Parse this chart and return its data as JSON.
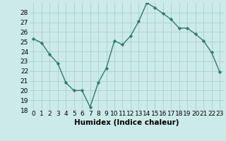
{
  "x": [
    0,
    1,
    2,
    3,
    4,
    5,
    6,
    7,
    8,
    9,
    10,
    11,
    12,
    13,
    14,
    15,
    16,
    17,
    18,
    19,
    20,
    21,
    22,
    23
  ],
  "y": [
    25.3,
    24.9,
    23.7,
    22.8,
    20.8,
    20.0,
    20.0,
    18.3,
    20.8,
    22.3,
    25.1,
    24.7,
    25.6,
    27.1,
    29.0,
    28.5,
    27.9,
    27.3,
    26.4,
    26.4,
    25.8,
    25.1,
    23.9,
    21.9
  ],
  "line_color": "#2d7d6e",
  "marker": "D",
  "marker_size": 2.2,
  "bg_color": "#cceaea",
  "grid_color": "#aacfcf",
  "xlabel": "Humidex (Indice chaleur)",
  "ylim": [
    18,
    29
  ],
  "xlim": [
    -0.5,
    23.5
  ],
  "yticks": [
    18,
    19,
    20,
    21,
    22,
    23,
    24,
    25,
    26,
    27,
    28
  ],
  "xticks": [
    0,
    1,
    2,
    3,
    4,
    5,
    6,
    7,
    8,
    9,
    10,
    11,
    12,
    13,
    14,
    15,
    16,
    17,
    18,
    19,
    20,
    21,
    22,
    23
  ],
  "xtick_labels": [
    "0",
    "1",
    "2",
    "3",
    "4",
    "5",
    "6",
    "7",
    "8",
    "9",
    "10",
    "11",
    "12",
    "13",
    "14",
    "15",
    "16",
    "17",
    "18",
    "19",
    "20",
    "21",
    "22",
    "23"
  ],
  "tick_fontsize": 6.5,
  "xlabel_fontsize": 7.5,
  "line_width": 1.0
}
